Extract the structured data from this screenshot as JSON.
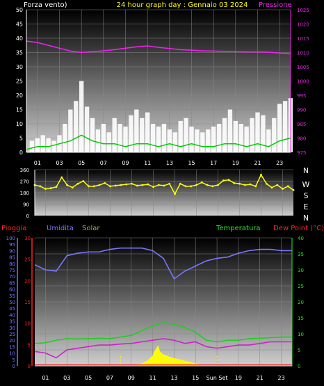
{
  "header": {
    "wind_title": "Forza vento)",
    "date_title": "24 hour graph day : Gennaio 03 2024",
    "pressure_title": "Pressione"
  },
  "compass": [
    "N",
    "W",
    "S",
    "E",
    "N"
  ],
  "middle_legend": {
    "rain": "Pioggia",
    "humidity": "Umidita",
    "solar": "Solar",
    "temperature": "Temperatura",
    "dewpoint": "Dew Point (°C)"
  },
  "sun_label": "Sun Set",
  "colors": {
    "wind_gust": "#ffffff",
    "wind_avg": "#00cc00",
    "pressure": "#ee22ee",
    "direction": "#ffff00",
    "rain": "#ff2222",
    "humidity": "#7777ff",
    "solar": "#ffff00",
    "temperature": "#22cc22",
    "dewpoint": "#cc22cc"
  },
  "chart_data": [
    {
      "type": "line",
      "title": "24 hour graph day : Gennaio 03 2024",
      "x_ticks": [
        "01",
        "03",
        "05",
        "07",
        "09",
        "11",
        "13",
        "15",
        "17",
        "19",
        "21",
        "23"
      ],
      "xlim": [
        0,
        24
      ],
      "y_left": {
        "label": "Forza vento)",
        "range": [
          0,
          50
        ],
        "ticks": [
          0,
          5,
          10,
          15,
          20,
          25,
          30,
          35,
          40,
          45,
          50
        ]
      },
      "y_right": {
        "label": "Pressione",
        "range": [
          975,
          1025
        ],
        "ticks": [
          975,
          980,
          985,
          990,
          995,
          1000,
          1005,
          1010,
          1015,
          1020,
          1025
        ]
      },
      "series": [
        {
          "name": "Forza vento",
          "axis": "left",
          "kind": "gust_bars",
          "x": [
            0.5,
            1,
            1.5,
            2,
            2.5,
            3,
            3.5,
            4,
            4.5,
            5,
            5.5,
            6,
            6.5,
            7,
            7.5,
            8,
            8.5,
            9,
            9.5,
            10,
            10.5,
            11,
            11.5,
            12,
            12.5,
            13,
            13.5,
            14,
            14.5,
            15,
            15.5,
            16,
            16.5,
            17,
            17.5,
            18,
            18.5,
            19,
            19.5,
            20,
            20.5,
            21,
            21.5,
            22,
            22.5,
            23,
            23.5,
            24
          ],
          "values": [
            4,
            5,
            6,
            5,
            4,
            6,
            10,
            15,
            18,
            25,
            16,
            12,
            8,
            10,
            7,
            12,
            10,
            9,
            13,
            15,
            12,
            14,
            10,
            9,
            10,
            8,
            7,
            11,
            12,
            9,
            8,
            7,
            8,
            9,
            10,
            12,
            15,
            11,
            10,
            9,
            12,
            14,
            13,
            8,
            12,
            17,
            18,
            19
          ]
        },
        {
          "name": "Media vento",
          "axis": "left",
          "kind": "avg_line",
          "x": [
            0,
            1,
            2,
            3,
            4,
            5,
            6,
            7,
            8,
            9,
            10,
            11,
            12,
            13,
            14,
            15,
            16,
            17,
            18,
            19,
            20,
            21,
            22,
            23,
            24
          ],
          "values": [
            1,
            2,
            2,
            3,
            4,
            6,
            4,
            3,
            3,
            2,
            3,
            3,
            2,
            3,
            2,
            3,
            2,
            2,
            3,
            3,
            2,
            3,
            2,
            4,
            5
          ]
        },
        {
          "name": "Pressione",
          "axis": "right",
          "kind": "line",
          "x": [
            0,
            1,
            2,
            3,
            4,
            5,
            6,
            7,
            8,
            9,
            10,
            11,
            12,
            13,
            14,
            15,
            16,
            17,
            18,
            19,
            20,
            21,
            22,
            23,
            24
          ],
          "values": [
            1014,
            1013.5,
            1012.5,
            1011.5,
            1010.5,
            1010,
            1010.3,
            1010.6,
            1011,
            1011.5,
            1012,
            1012.3,
            1011.8,
            1011.4,
            1011,
            1010.8,
            1010.6,
            1010.5,
            1010.4,
            1010.3,
            1010.2,
            1010.2,
            1010.1,
            1009.8,
            1009.5
          ]
        }
      ]
    },
    {
      "type": "scatter",
      "title": "Wind direction",
      "x_ticks": [],
      "xlim": [
        0,
        24
      ],
      "ylim": [
        0,
        360
      ],
      "y_ticks": [
        0,
        90,
        180,
        270,
        360
      ],
      "series": [
        {
          "name": "Direzione vento",
          "x": [
            0,
            0.5,
            1,
            1.5,
            2,
            2.5,
            3,
            3.5,
            4,
            4.5,
            5,
            5.5,
            6,
            6.5,
            7,
            7.5,
            8,
            8.5,
            9,
            9.5,
            10,
            10.5,
            11,
            11.5,
            12,
            12.5,
            13,
            13.5,
            14,
            14.5,
            15,
            15.5,
            16,
            16.5,
            17,
            17.5,
            18,
            18.5,
            19,
            19.5,
            20,
            20.5,
            21,
            21.5,
            22,
            22.5,
            23,
            23.5,
            24
          ],
          "values": [
            240,
            230,
            210,
            215,
            225,
            300,
            240,
            220,
            250,
            270,
            230,
            230,
            240,
            255,
            230,
            235,
            240,
            245,
            250,
            235,
            240,
            245,
            225,
            240,
            235,
            250,
            170,
            250,
            230,
            230,
            240,
            260,
            240,
            230,
            240,
            275,
            280,
            255,
            250,
            240,
            245,
            230,
            320,
            250,
            220,
            240,
            210,
            230,
            200
          ]
        }
      ]
    },
    {
      "type": "line",
      "title": "",
      "x_ticks": [
        "01",
        "03",
        "05",
        "07",
        "09",
        "11",
        "13",
        "15",
        "Sun Set",
        "19",
        "21",
        "23"
      ],
      "xlim": [
        0,
        24
      ],
      "y_left_outer": {
        "label": "Umidita",
        "range": [
          0,
          100
        ],
        "ticks": [
          0,
          5,
          10,
          15,
          20,
          25,
          30,
          35,
          40,
          45,
          50,
          55,
          60,
          65,
          70,
          75,
          80,
          85,
          90,
          95,
          100
        ]
      },
      "y_left_inner": {
        "label": "Pioggia",
        "range": [
          0,
          30
        ],
        "ticks": [
          0,
          5,
          10,
          15,
          20,
          25,
          30
        ]
      },
      "y_right": {
        "label": "Dew Point (°C)",
        "range": [
          0,
          40
        ],
        "ticks": [
          0,
          5,
          10,
          15,
          20,
          25,
          30,
          35,
          40
        ]
      },
      "series": [
        {
          "name": "Umidita",
          "axis": "left_outer",
          "x": [
            0,
            1,
            2,
            3,
            4,
            5,
            6,
            7,
            8,
            9,
            10,
            11,
            12,
            13,
            14,
            15,
            16,
            17,
            18,
            19,
            20,
            21,
            22,
            23,
            24
          ],
          "values": [
            79,
            75,
            74,
            86,
            88,
            89,
            89,
            91,
            92,
            92,
            92,
            90,
            84,
            68,
            74,
            78,
            82,
            84,
            85,
            88,
            90,
            91,
            91,
            90,
            90
          ]
        },
        {
          "name": "Temperatura",
          "axis": "right",
          "x": [
            0,
            1,
            2,
            3,
            4,
            5,
            6,
            7,
            8,
            9,
            10,
            11,
            12,
            13,
            14,
            15,
            16,
            17,
            18,
            19,
            20,
            21,
            22,
            23,
            24
          ],
          "values": [
            7,
            7.2,
            8,
            8.5,
            8.4,
            8.5,
            8.6,
            8.5,
            9,
            9.5,
            11,
            12.5,
            13.5,
            13,
            12,
            10.5,
            8,
            7.5,
            8,
            8,
            8.5,
            8.6,
            8.8,
            9,
            9
          ]
        },
        {
          "name": "Dew Point (°C)",
          "axis": "right",
          "x": [
            0,
            1,
            2,
            3,
            4,
            5,
            6,
            7,
            8,
            9,
            10,
            11,
            12,
            13,
            14,
            15,
            16,
            17,
            18,
            19,
            20,
            21,
            22,
            23,
            24
          ],
          "values": [
            4.5,
            4,
            2.5,
            5,
            5.5,
            6,
            6.5,
            6.5,
            6.8,
            7,
            7.5,
            8,
            8.5,
            8,
            7,
            7.5,
            6,
            5.5,
            6,
            6.5,
            6.5,
            7,
            7.5,
            7.5,
            7.5
          ]
        },
        {
          "name": "Solar",
          "axis": "left_outer",
          "kind": "area",
          "x": [
            9,
            9.5,
            10,
            10.5,
            11,
            11.2,
            11.5,
            11.7,
            12,
            12.3,
            12.6,
            13,
            13.5,
            14,
            14.5,
            15,
            15.5,
            16
          ],
          "values": [
            0,
            1,
            2,
            4,
            8,
            12,
            16,
            11,
            9,
            8,
            7,
            6,
            5,
            4,
            3,
            2,
            1,
            0
          ]
        },
        {
          "name": "Pioggia",
          "axis": "left_inner",
          "values": [
            0
          ]
        }
      ]
    }
  ]
}
